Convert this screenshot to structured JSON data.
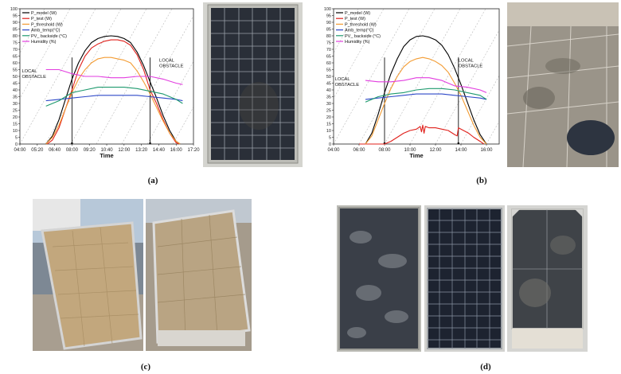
{
  "panels": {
    "a": {
      "caption": "(a)"
    },
    "b": {
      "caption": "(b)"
    },
    "c": {
      "caption": "(c)"
    },
    "d": {
      "caption": "(d)"
    }
  },
  "colors": {
    "P_model": "#000000",
    "P_test": "#e0201b",
    "P_threshold": "#f39c34",
    "Amb_temp": "#2d48c8",
    "PV_backside": "#1e9a6e",
    "Humidity": "#e23ddf"
  },
  "chart_data": [
    {
      "type": "line",
      "panel": "a",
      "xlabel": "Time",
      "ylabel": "",
      "x_ticks": [
        "04:00",
        "05:20",
        "06:40",
        "08:00",
        "09:20",
        "10:40",
        "12:00",
        "13:20",
        "14:40",
        "16:00",
        "17:20"
      ],
      "x_range_hours": [
        4.0,
        17.33
      ],
      "ylim": [
        0,
        100
      ],
      "y_ticks": [
        0,
        5,
        10,
        15,
        20,
        25,
        30,
        35,
        40,
        45,
        50,
        55,
        60,
        65,
        70,
        75,
        80,
        85,
        90,
        95,
        100
      ],
      "legend_position": "top-left",
      "annotations": [
        {
          "text": "LOCAL\nOBSTACLE",
          "x_hours": 4.15,
          "y": 53
        },
        {
          "text": "LOCAL\nOBSTACLE",
          "x_hours": 14.7,
          "y": 61
        }
      ],
      "vertical_lines_hours": [
        8.0,
        14.0
      ],
      "series": [
        {
          "name": "P_model (W)",
          "key": "P_model",
          "x": [
            6.0,
            6.5,
            7.0,
            7.5,
            8.0,
            8.5,
            9.0,
            9.5,
            10.0,
            10.5,
            11.0,
            11.5,
            12.0,
            12.5,
            13.0,
            13.5,
            14.0,
            14.5,
            15.0,
            15.5,
            16.0,
            16.3
          ],
          "y": [
            0,
            6,
            18,
            33,
            48,
            60,
            69,
            75,
            78,
            79.5,
            80,
            79.5,
            78,
            75,
            68,
            58,
            46,
            34,
            21,
            10,
            2,
            0
          ]
        },
        {
          "name": "P_test (W)",
          "key": "P_test",
          "x": [
            6.1,
            6.5,
            7.0,
            7.5,
            8.0,
            8.5,
            9.0,
            9.5,
            10.0,
            10.5,
            11.0,
            11.5,
            12.0,
            12.5,
            13.0,
            13.5,
            14.0,
            14.5,
            15.0,
            15.5,
            16.0,
            16.2
          ],
          "y": [
            0,
            3,
            12,
            26,
            40,
            55,
            65,
            71,
            74,
            76,
            77,
            77,
            76,
            73,
            66,
            55,
            40,
            30,
            18,
            8,
            1,
            0
          ]
        },
        {
          "name": "P_threshold (W)",
          "key": "P_threshold",
          "x": [
            6.0,
            6.5,
            7.0,
            7.5,
            8.0,
            8.5,
            9.0,
            9.5,
            10.0,
            10.5,
            11.0,
            11.5,
            12.0,
            12.5,
            13.0,
            13.5,
            14.0,
            14.5,
            15.0,
            15.5,
            16.0,
            16.3
          ],
          "y": [
            0,
            5,
            14,
            26,
            38,
            48,
            55,
            60,
            63,
            64,
            64,
            63,
            62,
            60,
            54,
            46,
            37,
            27,
            17,
            8,
            2,
            0
          ]
        },
        {
          "name": "Amb_temp(°C)",
          "key": "Amb_temp",
          "x": [
            6.0,
            7.0,
            8.0,
            9.0,
            10.0,
            11.0,
            12.0,
            13.0,
            14.0,
            15.0,
            16.0,
            16.5
          ],
          "y": [
            32,
            33,
            34,
            35,
            36,
            36,
            36,
            36,
            35,
            34,
            33,
            32
          ]
        },
        {
          "name": "PV_ backside (°C)",
          "key": "PV_backside",
          "x": [
            6.0,
            7.0,
            8.0,
            9.0,
            10.0,
            11.0,
            12.0,
            13.0,
            14.0,
            15.0,
            16.0,
            16.5
          ],
          "y": [
            28,
            32,
            38,
            40,
            42,
            42,
            42,
            41,
            39,
            37,
            33,
            30
          ]
        },
        {
          "name": "Humidity (%)",
          "key": "Humidity",
          "x": [
            6.0,
            7.0,
            8.0,
            9.0,
            10.0,
            11.0,
            12.0,
            13.0,
            14.0,
            15.0,
            16.0,
            16.5
          ],
          "y": [
            55,
            55,
            52,
            50,
            50,
            49,
            49,
            50,
            50,
            48,
            45,
            44
          ]
        }
      ]
    },
    {
      "type": "line",
      "panel": "b",
      "xlabel": "Time",
      "ylabel": "",
      "x_ticks": [
        "04:00",
        "06:00",
        "08:00",
        "10:00",
        "12:00",
        "14:00",
        "16:00"
      ],
      "x_range_hours": [
        4.0,
        17.0
      ],
      "ylim": [
        0,
        100
      ],
      "y_ticks": [
        0,
        5,
        10,
        15,
        20,
        25,
        30,
        35,
        40,
        45,
        50,
        55,
        60,
        65,
        70,
        75,
        80,
        85,
        90,
        95,
        100
      ],
      "legend_position": "top-left",
      "annotations": [
        {
          "text": "LOCAL\nOBSTACLE",
          "x_hours": 4.1,
          "y": 47
        },
        {
          "text": "LOCAL\nOBSTACLE",
          "x_hours": 13.8,
          "y": 61
        }
      ],
      "vertical_lines_hours": [
        8.0,
        13.8
      ],
      "series": [
        {
          "name": "P_model (W)",
          "key": "P_model",
          "x": [
            6.5,
            7.0,
            7.5,
            8.0,
            8.5,
            9.0,
            9.5,
            10.0,
            10.5,
            11.0,
            11.5,
            12.0,
            12.5,
            13.0,
            13.5,
            14.0,
            14.5,
            15.0,
            15.5,
            16.0
          ],
          "y": [
            0,
            8,
            22,
            38,
            52,
            63,
            72,
            77,
            79.5,
            80,
            79,
            77,
            73,
            66,
            56,
            44,
            31,
            18,
            7,
            0
          ]
        },
        {
          "name": "P_test (W)",
          "key": "P_test",
          "x": [
            6.0,
            8.0,
            8.5,
            9.0,
            9.5,
            10.0,
            10.5,
            10.8,
            10.9,
            11.0,
            11.1,
            11.2,
            11.5,
            12.0,
            12.5,
            13.0,
            13.5,
            13.7,
            13.8,
            14.2,
            14.6,
            15.0,
            15.5,
            15.8
          ],
          "y": [
            0,
            0,
            2,
            5,
            8,
            10,
            11,
            13,
            9,
            14,
            8,
            13,
            12,
            12,
            11,
            10,
            7,
            6,
            12,
            10,
            8,
            5,
            2,
            0
          ]
        },
        {
          "name": "P_threshold (W)",
          "key": "P_threshold",
          "x": [
            6.5,
            7.0,
            7.5,
            8.0,
            8.5,
            9.0,
            9.5,
            10.0,
            10.5,
            11.0,
            11.5,
            12.0,
            12.5,
            13.0,
            13.5,
            14.0,
            14.5,
            15.0,
            15.5,
            16.0
          ],
          "y": [
            0,
            6,
            18,
            30,
            41,
            50,
            57,
            61,
            63,
            64,
            63,
            61,
            58,
            53,
            45,
            36,
            25,
            14,
            5,
            0
          ]
        },
        {
          "name": "Amb_temp(°C)",
          "key": "Amb_temp",
          "x": [
            6.5,
            7.5,
            8.5,
            9.5,
            10.5,
            11.5,
            12.5,
            13.5,
            14.5,
            15.5,
            16.0
          ],
          "y": [
            33,
            34,
            35,
            36,
            37,
            37,
            37,
            36,
            35,
            34,
            33
          ]
        },
        {
          "name": "PV_ backside (°C)",
          "key": "PV_backside",
          "x": [
            6.5,
            7.5,
            8.5,
            9.5,
            10.5,
            11.5,
            12.5,
            13.5,
            14.5,
            15.5,
            16.0
          ],
          "y": [
            31,
            35,
            37,
            38,
            40,
            41,
            41,
            40,
            38,
            36,
            33
          ]
        },
        {
          "name": "Humidity (%)",
          "key": "Humidity",
          "x": [
            6.5,
            7.5,
            8.5,
            9.5,
            10.5,
            11.5,
            12.5,
            13.5,
            14.5,
            15.5,
            16.0
          ],
          "y": [
            47,
            46,
            46,
            47,
            49,
            49,
            47,
            43,
            42,
            40,
            38
          ]
        }
      ]
    }
  ]
}
